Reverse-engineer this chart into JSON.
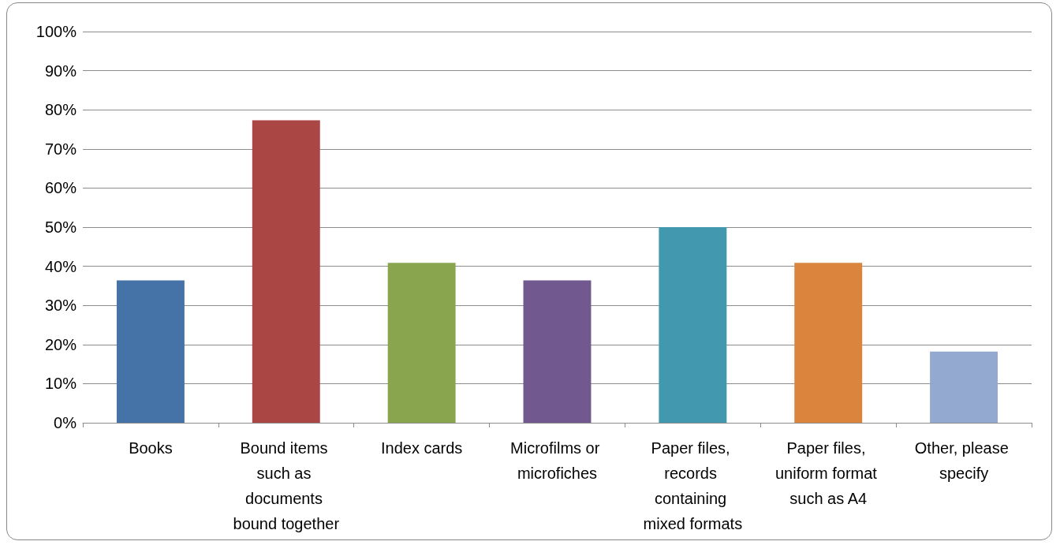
{
  "chart_data": {
    "type": "bar",
    "categories": [
      "Books",
      "Bound items such as documents bound together",
      "Index cards",
      "Microfilms or microfiches",
      "Paper files, records containing mixed formats",
      "Paper files, uniform format such as A4",
      "Other, please specify"
    ],
    "values": [
      36.4,
      77.3,
      40.9,
      36.4,
      50,
      40.9,
      18.2
    ],
    "colors": [
      "#4572a7",
      "#aa4643",
      "#89a54e",
      "#71588f",
      "#4198af",
      "#db843d",
      "#93a9cf"
    ],
    "ylim": [
      0,
      100
    ],
    "yticks": [
      {
        "value": 0,
        "label": "0%"
      },
      {
        "value": 10,
        "label": "10%"
      },
      {
        "value": 20,
        "label": "20%"
      },
      {
        "value": 30,
        "label": "30%"
      },
      {
        "value": 40,
        "label": "40%"
      },
      {
        "value": 50,
        "label": "50%"
      },
      {
        "value": 60,
        "label": "60%"
      },
      {
        "value": 70,
        "label": "70%"
      },
      {
        "value": 80,
        "label": "80%"
      },
      {
        "value": 90,
        "label": "90%"
      },
      {
        "value": 100,
        "label": "100%"
      }
    ],
    "grid": "y"
  }
}
